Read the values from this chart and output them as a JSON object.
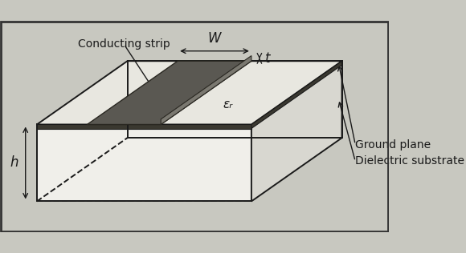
{
  "bg_color": "#c8c8c0",
  "inner_bg": "#d4d4cc",
  "border_color": "#1a1a1a",
  "box_face_color": "#f0efea",
  "box_top_color": "#e8e7e0",
  "box_right_color": "#d8d7d0",
  "box_bottom_color": "#888880",
  "strip_color": "#5a5852",
  "strip_edge_color": "#2a2822",
  "ground_color": "#3a3830",
  "label_conducting_strip": "Conducting strip",
  "label_ground_plane": "Ground plane",
  "label_dielectric": "Dielectric substrate",
  "label_W": "W",
  "label_t": "t",
  "label_h": "h",
  "label_er": "εᵣ",
  "font_size": 10,
  "font_size_labels": 11
}
